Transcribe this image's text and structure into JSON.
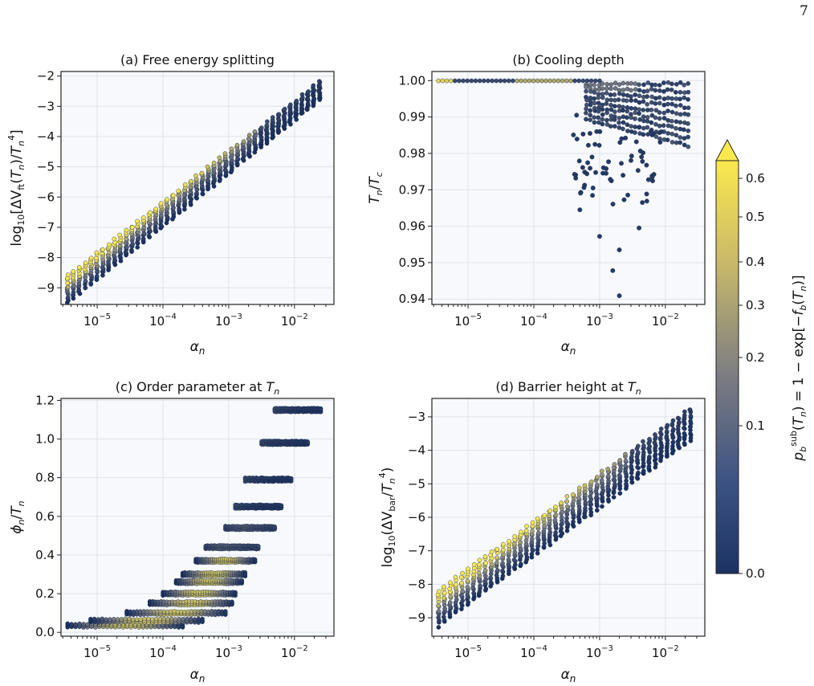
{
  "page_number": "7",
  "colorbar": {
    "label": "p_b^sub(T_n) = 1 − exp[−f_b(T_n)]",
    "ticks": [
      "0.0",
      "0.1",
      "0.2",
      "0.3",
      "0.4",
      "0.5",
      "0.6"
    ],
    "tick_values": [
      0.0,
      0.1,
      0.2,
      0.3,
      0.4,
      0.5,
      0.6
    ],
    "extend": "max",
    "colors": [
      "#1b3263",
      "#7c7d82",
      "#fbe84e"
    ]
  },
  "chart_data": [
    {
      "id": "a",
      "type": "scatter",
      "title": "(a) Free energy splitting",
      "xlabel": "α_n",
      "ylabel": "log10[ΔV_ft(T_n)/T_n^4]",
      "xscale": "log",
      "x_range_log10": [
        -5.55,
        -1.4
      ],
      "x_tick_exponents": [
        "−5",
        "−4",
        "−3",
        "−2"
      ],
      "ylim": [
        -9.55,
        -1.85
      ],
      "yticks": [
        -9,
        -8,
        -7,
        -6,
        -5,
        -4,
        -3,
        -2
      ],
      "ytick_labels": [
        "−9",
        "−8",
        "−7",
        "−6",
        "−5",
        "−4",
        "−3",
        "−2"
      ],
      "grid": true,
      "band": {
        "x_log10": [
          -5.45,
          -1.62
        ],
        "upper_y": [
          -8.6,
          -2.2
        ],
        "lower_y": [
          -9.5,
          -2.8
        ],
        "yellow_y": [
          -8.65,
          -7.05
        ]
      },
      "representative_points": [
        {
          "x_log10": -5.4,
          "y": -8.6
        },
        {
          "x_log10": -4.5,
          "y": -7.2
        },
        {
          "x_log10": -3.5,
          "y": -5.3
        },
        {
          "x_log10": -2.5,
          "y": -3.5
        },
        {
          "x_log10": -1.65,
          "y": -2.3
        }
      ]
    },
    {
      "id": "b",
      "type": "scatter",
      "title": "(b) Cooling depth",
      "xlabel": "α_n",
      "ylabel": "T_n/T_c",
      "xscale": "log",
      "x_range_log10": [
        -5.55,
        -1.4
      ],
      "x_tick_exponents": [
        "−5",
        "−4",
        "−3",
        "−2"
      ],
      "ylim": [
        0.9385,
        1.0025
      ],
      "yticks": [
        0.94,
        0.95,
        0.96,
        0.97,
        0.98,
        0.99,
        1.0
      ],
      "ytick_labels": [
        "0.94",
        "0.95",
        "0.96",
        "0.97",
        "0.98",
        "0.99",
        "1.00"
      ],
      "grid": true,
      "scattered_points": [
        {
          "x_log10": -2.7,
          "y": 0.9409
        },
        {
          "x_log10": -2.8,
          "y": 0.9478
        },
        {
          "x_log10": -3.0,
          "y": 0.9572
        },
        {
          "x_log10": -2.7,
          "y": 0.9535
        },
        {
          "x_log10": -2.4,
          "y": 0.9595
        },
        {
          "x_log10": -3.3,
          "y": 0.9645
        },
        {
          "x_log10": -2.35,
          "y": 0.9665
        },
        {
          "x_log10": -3.1,
          "y": 0.9705
        },
        {
          "x_log10": -2.9,
          "y": 0.9758
        },
        {
          "x_log10": -3.35,
          "y": 0.9905
        }
      ]
    },
    {
      "id": "c",
      "type": "scatter",
      "title": "(c) Order parameter at T_n",
      "xlabel": "α_n",
      "ylabel": "φ_n/T_n",
      "xscale": "log",
      "x_range_log10": [
        -5.55,
        -1.4
      ],
      "x_tick_exponents": [
        "−5",
        "−4",
        "−3",
        "−2"
      ],
      "ylim": [
        -0.02,
        1.21
      ],
      "yticks": [
        0.0,
        0.2,
        0.4,
        0.6,
        0.8,
        1.0,
        1.2
      ],
      "ytick_labels": [
        "0.0",
        "0.2",
        "0.4",
        "0.6",
        "0.8",
        "1.0",
        "1.2"
      ],
      "grid": true,
      "rows": [
        {
          "y": 0.035,
          "x_log10": [
            -5.45,
            -3.7
          ]
        },
        {
          "y": 0.06,
          "x_log10": [
            -5.1,
            -3.4
          ]
        },
        {
          "y": 0.1,
          "x_log10": [
            -4.55,
            -3.05
          ]
        },
        {
          "y": 0.15,
          "x_log10": [
            -4.2,
            -2.95
          ]
        },
        {
          "y": 0.2,
          "x_log10": [
            -4.0,
            -2.9
          ]
        },
        {
          "y": 0.26,
          "x_log10": [
            -3.8,
            -2.8
          ]
        },
        {
          "y": 0.3,
          "x_log10": [
            -3.7,
            -2.75
          ]
        },
        {
          "y": 0.37,
          "x_log10": [
            -3.5,
            -2.6
          ]
        },
        {
          "y": 0.44,
          "x_log10": [
            -3.35,
            -2.55
          ]
        },
        {
          "y": 0.54,
          "x_log10": [
            -3.05,
            -2.3
          ]
        },
        {
          "y": 0.65,
          "x_log10": [
            -2.9,
            -2.2
          ]
        },
        {
          "y": 0.79,
          "x_log10": [
            -2.75,
            -2.05
          ]
        },
        {
          "y": 0.98,
          "x_log10": [
            -2.5,
            -1.8
          ]
        },
        {
          "y": 1.15,
          "x_log10": [
            -2.3,
            -1.6
          ]
        }
      ]
    },
    {
      "id": "d",
      "type": "scatter",
      "title": "(d) Barrier height at T_n",
      "xlabel": "α_n",
      "ylabel": "log10(ΔV_bar/T_n^4)",
      "xscale": "log",
      "x_range_log10": [
        -5.55,
        -1.4
      ],
      "x_tick_exponents": [
        "−5",
        "−4",
        "−3",
        "−2"
      ],
      "ylim": [
        -9.55,
        -2.45
      ],
      "yticks": [
        -9,
        -8,
        -7,
        -6,
        -5,
        -4,
        -3
      ],
      "ytick_labels": [
        "−9",
        "−8",
        "−7",
        "−6",
        "−5",
        "−4",
        "−3"
      ],
      "grid": true,
      "band": {
        "x_log10": [
          -5.45,
          -1.62
        ],
        "upper_y": [
          -8.2,
          -2.75
        ],
        "lower_y": [
          -9.25,
          -3.7
        ],
        "yellow_y": [
          -8.25,
          -5.7
        ]
      },
      "representative_points": [
        {
          "x_log10": -5.4,
          "y": -8.3
        },
        {
          "x_log10": -4.5,
          "y": -7.1
        },
        {
          "x_log10": -3.5,
          "y": -5.7
        },
        {
          "x_log10": -2.5,
          "y": -4.2
        },
        {
          "x_log10": -1.65,
          "y": -2.9
        }
      ]
    }
  ]
}
